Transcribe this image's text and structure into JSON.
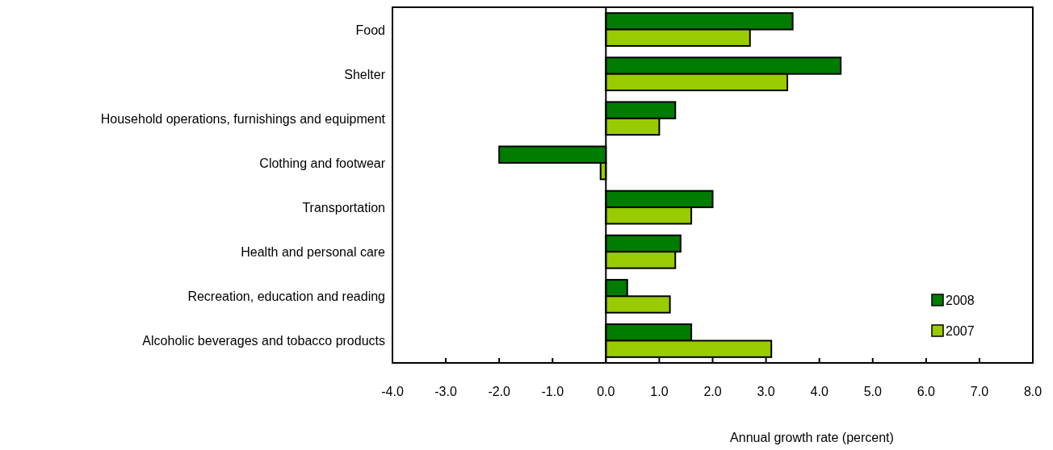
{
  "chart_data": {
    "type": "bar",
    "orientation": "horizontal",
    "xlabel": "Annual growth rate (percent)",
    "categories": [
      "Food",
      "Shelter",
      "Household operations, furnishings and equipment",
      "Clothing and footwear",
      "Transportation",
      "Health and personal care",
      "Recreation, education and reading",
      "Alcoholic beverages and tobacco products"
    ],
    "series": [
      {
        "name": "2008",
        "color": "#007c00",
        "values": [
          3.5,
          4.4,
          1.3,
          -2.0,
          2.0,
          1.4,
          0.4,
          1.6
        ]
      },
      {
        "name": "2007",
        "color": "#99cc00",
        "values": [
          2.7,
          3.4,
          1.0,
          -0.1,
          1.6,
          1.3,
          1.2,
          3.1
        ]
      }
    ],
    "xlim": [
      -4,
      8
    ],
    "xticks": [
      {
        "value": -4,
        "label": "-4.0"
      },
      {
        "value": -3,
        "label": "-3.0"
      },
      {
        "value": -2,
        "label": "-2.0"
      },
      {
        "value": -1,
        "label": "-1.0"
      },
      {
        "value": 0,
        "label": "0.0"
      },
      {
        "value": 1,
        "label": "1.0"
      },
      {
        "value": 2,
        "label": "2.0"
      },
      {
        "value": 3,
        "label": "3.0"
      },
      {
        "value": 4,
        "label": "4.0"
      },
      {
        "value": 5,
        "label": "5.0"
      },
      {
        "value": 6,
        "label": "6.0"
      },
      {
        "value": 7,
        "label": "7.0"
      },
      {
        "value": 8,
        "label": "8.0"
      }
    ],
    "legend": "bottom right"
  }
}
